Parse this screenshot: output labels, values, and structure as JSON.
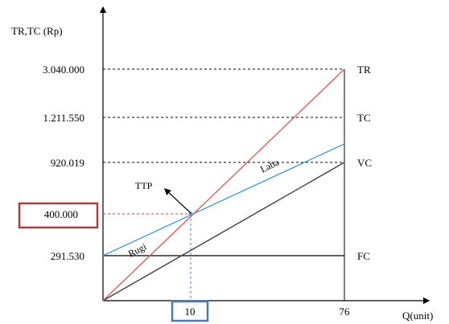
{
  "chart_data": {
    "type": "line",
    "ylabel": "TR,TC (Rp)",
    "xlabel": "Q(unit)",
    "y_ticks": [
      "3.040.000",
      "1.211.550",
      "920.019",
      "400.000",
      "291.530"
    ],
    "x_ticks": [
      "10",
      "76"
    ],
    "series": [
      {
        "name": "TR",
        "color": "#e05a5a",
        "x": [
          0,
          76
        ],
        "y": [
          0,
          3040000
        ]
      },
      {
        "name": "TC",
        "color": "#4a9bd4",
        "x": [
          0,
          76
        ],
        "y": [
          291530,
          1211550
        ]
      },
      {
        "name": "VC",
        "color": "#404040",
        "x": [
          0,
          76
        ],
        "y": [
          0,
          920019
        ]
      },
      {
        "name": "FC",
        "color": "#000000",
        "x": [
          0,
          76
        ],
        "y": [
          291530,
          291530
        ]
      }
    ],
    "annotations": {
      "break_even_label": "TTP",
      "profit_label": "Laba",
      "loss_label": "Rugi",
      "break_even_point": {
        "x": 10,
        "y": 400000
      }
    },
    "highlight_color_y": "#b33a3a",
    "highlight_color_x": "#4a78b8"
  }
}
